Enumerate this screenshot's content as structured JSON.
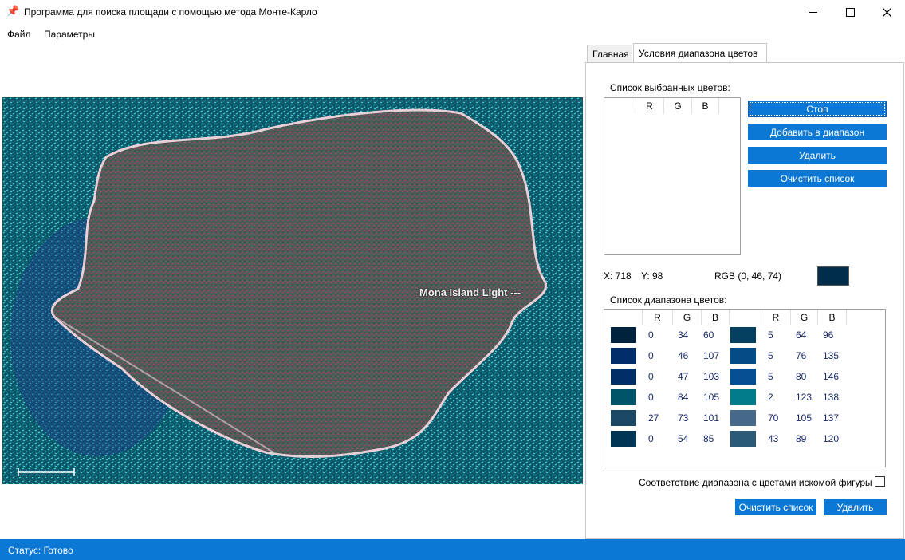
{
  "window": {
    "title": "Программа для поиска площади с помощью метода Монте-Карло",
    "minimize_icon": "minimize-icon",
    "maximize_icon": "maximize-icon",
    "close_icon": "close-icon"
  },
  "menu": {
    "file": "Файл",
    "params": "Параметры"
  },
  "map": {
    "label": "Mona Island Light ---"
  },
  "tabs": {
    "main": "Главная",
    "color_range": "Условия диапазона цветов"
  },
  "selected_colors": {
    "title": "Список выбранных цветов:",
    "columns": [
      "R",
      "G",
      "B"
    ]
  },
  "buttons": {
    "stop": "Стоп",
    "add_to_range": "Добавить в диапазон",
    "delete": "Удалить",
    "clear_list": "Очистить список",
    "bottom_clear": "Очистить список",
    "bottom_delete": "Удалить"
  },
  "cursor": {
    "x": "X: 718",
    "y": "Y: 98",
    "rgb": "RGB (0, 46, 74)",
    "rgb_color": "#002e4a"
  },
  "range_list": {
    "title": "Список диапазона цветов:",
    "columns": [
      "R",
      "G",
      "B"
    ],
    "rows": [
      {
        "left": {
          "color": "#00223c",
          "r": "0",
          "g": "34",
          "b": "60"
        },
        "right": {
          "color": "#054060",
          "r": "5",
          "g": "64",
          "b": "96"
        }
      },
      {
        "left": {
          "color": "#002e6b",
          "r": "0",
          "g": "46",
          "b": "107"
        },
        "right": {
          "color": "#054c87",
          "r": "5",
          "g": "76",
          "b": "135"
        }
      },
      {
        "left": {
          "color": "#002f67",
          "r": "0",
          "g": "47",
          "b": "103"
        },
        "right": {
          "color": "#055092",
          "r": "5",
          "g": "80",
          "b": "146"
        }
      },
      {
        "left": {
          "color": "#005469",
          "r": "0",
          "g": "84",
          "b": "105"
        },
        "right": {
          "color": "#027b8a",
          "r": "2",
          "g": "123",
          "b": "138"
        }
      },
      {
        "left": {
          "color": "#1b4965",
          "r": "27",
          "g": "73",
          "b": "101"
        },
        "right": {
          "color": "#466989",
          "r": "70",
          "g": "105",
          "b": "137"
        }
      },
      {
        "left": {
          "color": "#003655",
          "r": "0",
          "g": "54",
          "b": "85"
        },
        "right": {
          "color": "#2b5978",
          "r": "43",
          "g": "89",
          "b": "120"
        }
      }
    ]
  },
  "checkbox_label": "Соответствие диапазона с цветами искомой фигуры",
  "status": {
    "text": "Статус: Готово"
  },
  "colors": {
    "accent": "#0a78d4"
  }
}
